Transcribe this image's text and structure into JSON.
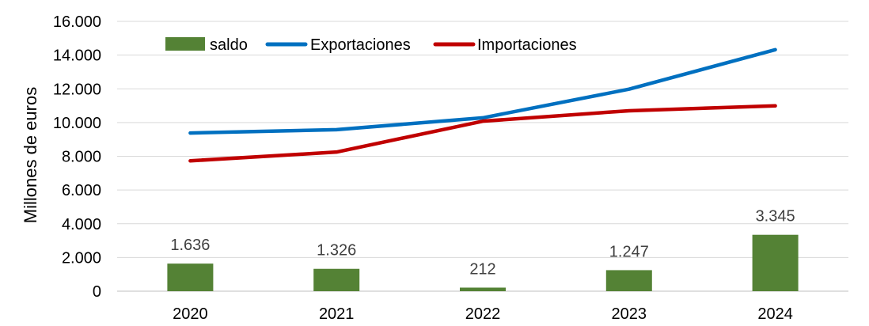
{
  "chart_data": {
    "type": "bar+line",
    "categories": [
      "2020",
      "2021",
      "2022",
      "2023",
      "2024"
    ],
    "ylabel": "Millones de euros",
    "ylim": [
      0,
      16000
    ],
    "yticks": [
      0,
      2000,
      4000,
      6000,
      8000,
      10000,
      12000,
      14000,
      16000
    ],
    "ytick_labels": [
      "0",
      "2.000",
      "4.000",
      "6.000",
      "8.000",
      "10.000",
      "12.000",
      "14.000",
      "16.000"
    ],
    "grid": true,
    "legend_position": "top-left",
    "bars": {
      "name": "saldo",
      "values": [
        1636,
        1326,
        212,
        1247,
        3345
      ],
      "labels": [
        "1.636",
        "1.326",
        "212",
        "1.247",
        "3.345"
      ],
      "color": "#548235"
    },
    "series": [
      {
        "name": "Exportaciones",
        "values": [
          9380,
          9580,
          10280,
          11980,
          14320
        ],
        "color": "#0070C0"
      },
      {
        "name": "Importaciones",
        "values": [
          7730,
          8250,
          10080,
          10700,
          10990
        ],
        "color": "#C00000"
      }
    ]
  }
}
